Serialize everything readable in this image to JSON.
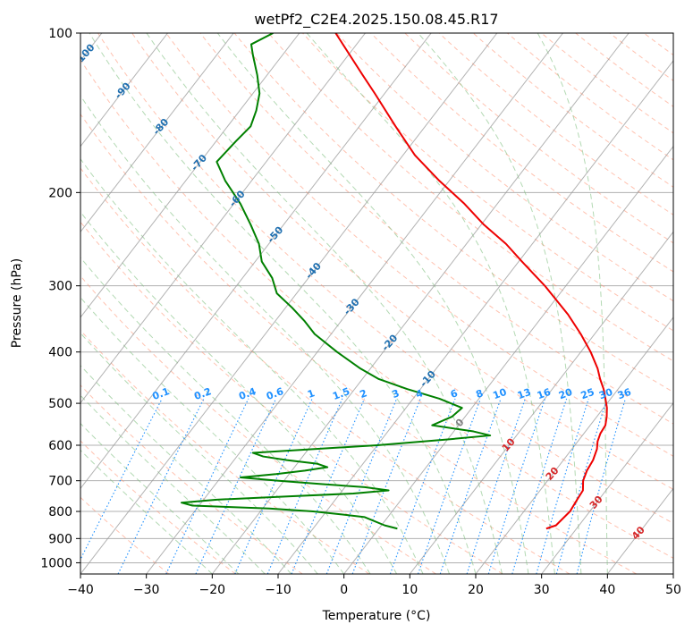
{
  "chart_data": {
    "type": "line",
    "subtype": "skew-t log-p diagram",
    "title": "wetPf2_C2E4.2025.150.08.45.R17",
    "xlabel": "Temperature (°C)",
    "ylabel": "Pressure (hPa)",
    "xlim": [
      -40,
      50
    ],
    "ylim": [
      1050,
      100
    ],
    "y_scale": "log",
    "grid": true,
    "x_ticks": [
      -40,
      -30,
      -20,
      -10,
      0,
      10,
      20,
      30,
      40,
      50
    ],
    "x_tick_labels": [
      "−40",
      "−30",
      "−20",
      "−10",
      "0",
      "10",
      "20",
      "30",
      "40",
      "50"
    ],
    "y_ticks": [
      100,
      200,
      300,
      400,
      500,
      600,
      700,
      800,
      900,
      1000
    ],
    "y_tick_labels": [
      "100",
      "200",
      "300",
      "400",
      "500",
      "600",
      "700",
      "800",
      "900",
      "1000"
    ],
    "colors": {
      "temperature": "#ee0000",
      "dewpoint": "#008000",
      "isotherm": "#999999",
      "dry_adiabat": "#ff9070",
      "moist_adiabat": "#80c080",
      "mixing_ratio": "#1e90ff",
      "mixing_ratio_label": "#1e90ff",
      "isotherm_label": "#1f6fb0",
      "warm_isotherm_label": "#d62728",
      "zero_label": "#808080",
      "grid": "#b0b0b0"
    },
    "series": [
      {
        "name": "temperature",
        "pressure": [
          862,
          850,
          800,
          760,
          730,
          700,
          670,
          640,
          610,
          590,
          570,
          550,
          530,
          510,
          490,
          470,
          450,
          430,
          400,
          370,
          340,
          300,
          270,
          250,
          230,
          210,
          190,
          170,
          150,
          130,
          120,
          110,
          100
        ],
        "temperature": [
          25.4,
          26.5,
          27.0,
          26.7,
          26.5,
          25.4,
          24.8,
          24.5,
          23.8,
          23.0,
          22.5,
          22.3,
          21.5,
          20.5,
          19.2,
          17.8,
          16.1,
          14.5,
          11.5,
          7.9,
          3.7,
          -3.2,
          -9.5,
          -14.0,
          -19.6,
          -25.0,
          -31.5,
          -38.2,
          -44.5,
          -51.5,
          -55.5,
          -59.8,
          -64.5
        ]
      },
      {
        "name": "dewpoint",
        "pressure": [
          862,
          850,
          820,
          810,
          800,
          790,
          780,
          770,
          760,
          750,
          740,
          730,
          720,
          710,
          700,
          690,
          680,
          670,
          660,
          650,
          640,
          630,
          620,
          600,
          585,
          575,
          565,
          550,
          530,
          510,
          490,
          470,
          450,
          430,
          400,
          370,
          350,
          330,
          310,
          290,
          270,
          250,
          230,
          210,
          190,
          175,
          160,
          150,
          140,
          130,
          120,
          110,
          105,
          100
        ],
        "temperature": [
          2.8,
          0.5,
          -3.5,
          -7.5,
          -12.0,
          -19.0,
          -31.0,
          -33.0,
          -28.0,
          -18.0,
          -8.0,
          -3.0,
          -7.0,
          -14.0,
          -21.0,
          -27.0,
          -22.0,
          -18.0,
          -15.0,
          -17.0,
          -22.0,
          -26.0,
          -28.0,
          -10.0,
          0.0,
          6.0,
          3.0,
          -4.0,
          -2.0,
          -1.5,
          -6.0,
          -12.0,
          -17.5,
          -21.5,
          -27.0,
          -32.5,
          -35.5,
          -39.0,
          -43.0,
          -45.5,
          -49.0,
          -51.5,
          -55.0,
          -59.0,
          -64.0,
          -67.5,
          -67.0,
          -66.5,
          -67.5,
          -69.0,
          -71.5,
          -74.5,
          -76.0,
          -74.0
        ]
      }
    ],
    "isotherm_labels": [
      {
        "text": "-100",
        "value": -100
      },
      {
        "text": "-90",
        "value": -90
      },
      {
        "text": "-80",
        "value": -80
      },
      {
        "text": "-70",
        "value": -70
      },
      {
        "text": "-60",
        "value": -60
      },
      {
        "text": "-50",
        "value": -50
      },
      {
        "text": "-40",
        "value": -40
      },
      {
        "text": "-30",
        "value": -30
      },
      {
        "text": "-20",
        "value": -20
      },
      {
        "text": "-10",
        "value": -10
      },
      {
        "text": "0",
        "value": 0
      },
      {
        "text": "10",
        "value": 10
      },
      {
        "text": "20",
        "value": 20
      },
      {
        "text": "30",
        "value": 30
      },
      {
        "text": "40",
        "value": 40
      }
    ],
    "mixing_ratio_labels": [
      {
        "text": "0.1",
        "value": 0.1
      },
      {
        "text": "0.2",
        "value": 0.2
      },
      {
        "text": "0.4",
        "value": 0.4
      },
      {
        "text": "0.6",
        "value": 0.6
      },
      {
        "text": "1",
        "value": 1
      },
      {
        "text": "1.5",
        "value": 1.5
      },
      {
        "text": "2",
        "value": 2
      },
      {
        "text": "3",
        "value": 3
      },
      {
        "text": "4",
        "value": 4
      },
      {
        "text": "6",
        "value": 6
      },
      {
        "text": "8",
        "value": 8
      },
      {
        "text": "10",
        "value": 10
      },
      {
        "text": "13",
        "value": 13
      },
      {
        "text": "16",
        "value": 16
      },
      {
        "text": "20",
        "value": 20
      },
      {
        "text": "25",
        "value": 25
      },
      {
        "text": "30",
        "value": 30
      },
      {
        "text": "36",
        "value": 36
      }
    ]
  }
}
